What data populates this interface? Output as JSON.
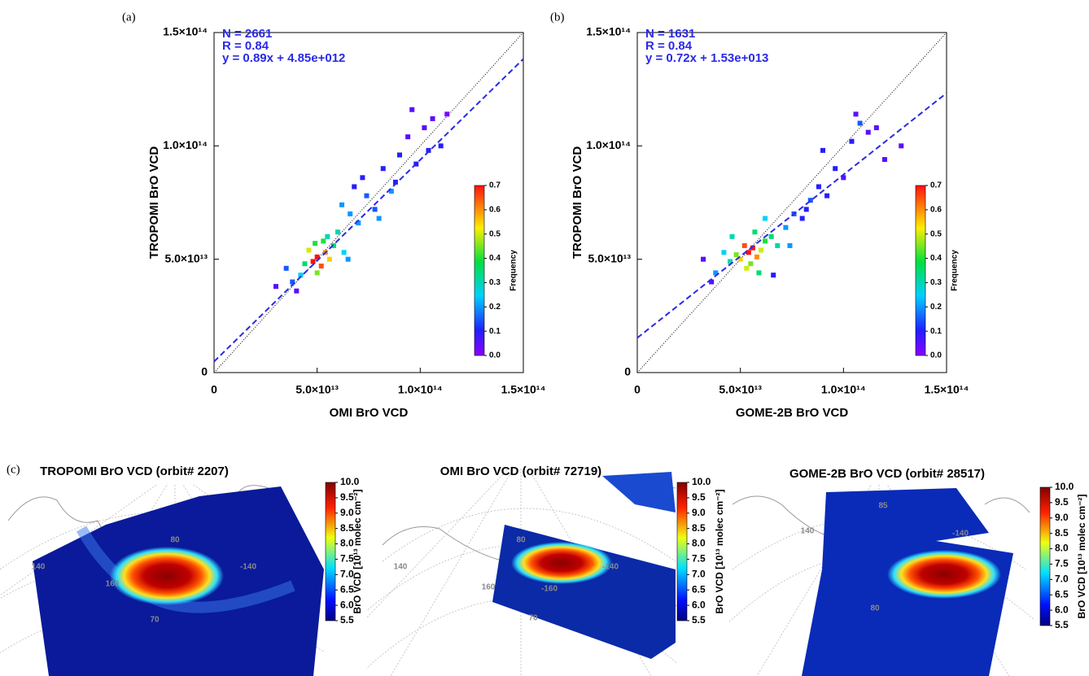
{
  "chart_data": [
    {
      "type": "scatter",
      "panel_label": "(a)",
      "x_label": "OMI BrO VCD",
      "y_label": "TROPOMI BrO VCD",
      "annotations": [
        "N = 2661",
        "R = 0.84",
        "y = 0.89x + 4.85e+012"
      ],
      "fit": {
        "slope": 0.89,
        "intercept": 4850000000000.0
      },
      "fit_color": "#2a2ae6",
      "xlim": [
        0,
        150000000000000.0
      ],
      "ylim": [
        0,
        150000000000000.0
      ],
      "xticks": [
        0,
        {
          "value": 50000000000000.0,
          "label": "5.0×10¹³"
        },
        {
          "value": 100000000000000.0,
          "label": "1.0×10¹⁴"
        },
        {
          "value": 150000000000000.0,
          "label": "1.5×10¹⁴"
        }
      ],
      "yticks": [
        0,
        {
          "value": 50000000000000.0,
          "label": "5.0×10¹³"
        },
        {
          "value": 100000000000000.0,
          "label": "1.0×10¹⁴"
        },
        {
          "value": 150000000000000.0,
          "label": "1.5×10¹⁴"
        }
      ],
      "colorbar_label": "Frequency",
      "colorbar_lim": [
        0,
        0.7
      ],
      "colorbar_ticks": [
        {
          "value": 0,
          "label": "0.0"
        },
        0.1,
        0.2,
        0.3,
        0.4,
        0.5,
        0.6,
        0.7
      ],
      "x": [
        48000000000000.0,
        50000000000000.0,
        52000000000000.0,
        54000000000000.0,
        46000000000000.0,
        56000000000000.0,
        50000000000000.0,
        53000000000000.0,
        44000000000000.0,
        58000000000000.0,
        60000000000000.0,
        42000000000000.0,
        63000000000000.0,
        55000000000000.0,
        49000000000000.0,
        38000000000000.0,
        35000000000000.0,
        66000000000000.0,
        70000000000000.0,
        74000000000000.0,
        68000000000000.0,
        78000000000000.0,
        82000000000000.0,
        86000000000000.0,
        90000000000000.0,
        94000000000000.0,
        98000000000000.0,
        102000000000000.0,
        106000000000000.0,
        110000000000000.0,
        80000000000000.0,
        72000000000000.0,
        62000000000000.0,
        96000000000000.0,
        104000000000000.0,
        30000000000000.0,
        40000000000000.0,
        65000000000000.0,
        88000000000000.0,
        113000000000000.0
      ],
      "values": [
        49000000000000.0,
        51000000000000.0,
        47000000000000.0,
        53000000000000.0,
        54000000000000.0,
        50000000000000.0,
        44000000000000.0,
        58000000000000.0,
        48000000000000.0,
        56000000000000.0,
        62000000000000.0,
        43000000000000.0,
        53000000000000.0,
        60000000000000.0,
        57000000000000.0,
        40000000000000.0,
        46000000000000.0,
        70000000000000.0,
        66000000000000.0,
        78000000000000.0,
        82000000000000.0,
        72000000000000.0,
        90000000000000.0,
        80000000000000.0,
        96000000000000.0,
        104000000000000.0,
        92000000000000.0,
        108000000000000.0,
        112000000000000.0,
        100000000000000.0,
        68000000000000.0,
        86000000000000.0,
        74000000000000.0,
        116000000000000.0,
        98000000000000.0,
        38000000000000.0,
        36000000000000.0,
        50000000000000.0,
        84000000000000.0,
        114000000000000.0
      ],
      "frequency": [
        0.7,
        0.7,
        0.65,
        0.6,
        0.5,
        0.55,
        0.45,
        0.4,
        0.35,
        0.35,
        0.3,
        0.25,
        0.25,
        0.3,
        0.4,
        0.15,
        0.15,
        0.2,
        0.2,
        0.15,
        0.1,
        0.15,
        0.1,
        0.2,
        0.1,
        0.05,
        0.1,
        0.05,
        0.05,
        0.1,
        0.2,
        0.1,
        0.2,
        0.05,
        0.1,
        0.05,
        0.05,
        0.2,
        0.1,
        0.02
      ]
    },
    {
      "type": "scatter",
      "panel_label": "(b)",
      "x_label": "GOME-2B BrO VCD",
      "y_label": "TROPOMI BrO VCD",
      "annotations": [
        "N = 1631",
        "R = 0.84",
        "y = 0.72x + 1.53e+013"
      ],
      "fit": {
        "slope": 0.72,
        "intercept": 15300000000000.0
      },
      "fit_color": "#2a2ae6",
      "xlim": [
        0,
        150000000000000.0
      ],
      "ylim": [
        0,
        150000000000000.0
      ],
      "xticks": [
        0,
        {
          "value": 50000000000000.0,
          "label": "5.0×10¹³"
        },
        {
          "value": 100000000000000.0,
          "label": "1.0×10¹⁴"
        },
        {
          "value": 150000000000000.0,
          "label": "1.5×10¹⁴"
        }
      ],
      "yticks": [
        0,
        {
          "value": 50000000000000.0,
          "label": "5.0×10¹³"
        },
        {
          "value": 100000000000000.0,
          "label": "1.0×10¹⁴"
        },
        {
          "value": 150000000000000.0,
          "label": "1.5×10¹⁴"
        }
      ],
      "colorbar_label": "Frequency",
      "colorbar_lim": [
        0,
        0.7
      ],
      "colorbar_ticks": [
        {
          "value": 0,
          "label": "0.0"
        },
        0.1,
        0.2,
        0.3,
        0.4,
        0.5,
        0.6,
        0.7
      ],
      "x": [
        54000000000000.0,
        56000000000000.0,
        58000000000000.0,
        52000000000000.0,
        50000000000000.0,
        60000000000000.0,
        55000000000000.0,
        48000000000000.0,
        62000000000000.0,
        53000000000000.0,
        45000000000000.0,
        65000000000000.0,
        42000000000000.0,
        68000000000000.0,
        57000000000000.0,
        38000000000000.0,
        72000000000000.0,
        76000000000000.0,
        80000000000000.0,
        84000000000000.0,
        88000000000000.0,
        92000000000000.0,
        96000000000000.0,
        100000000000000.0,
        104000000000000.0,
        108000000000000.0,
        112000000000000.0,
        120000000000000.0,
        128000000000000.0,
        32000000000000.0,
        36000000000000.0,
        66000000000000.0,
        74000000000000.0,
        90000000000000.0,
        106000000000000.0,
        46000000000000.0,
        62000000000000.0,
        59000000000000.0,
        116000000000000.0,
        82000000000000.0
      ],
      "values": [
        53000000000000.0,
        55000000000000.0,
        51000000000000.0,
        56000000000000.0,
        50000000000000.0,
        54000000000000.0,
        48000000000000.0,
        52000000000000.0,
        58000000000000.0,
        46000000000000.0,
        49000000000000.0,
        60000000000000.0,
        53000000000000.0,
        56000000000000.0,
        62000000000000.0,
        44000000000000.0,
        64000000000000.0,
        70000000000000.0,
        68000000000000.0,
        76000000000000.0,
        82000000000000.0,
        78000000000000.0,
        90000000000000.0,
        86000000000000.0,
        102000000000000.0,
        110000000000000.0,
        106000000000000.0,
        94000000000000.0,
        100000000000000.0,
        50000000000000.0,
        40000000000000.0,
        43000000000000.0,
        56000000000000.0,
        98000000000000.0,
        114000000000000.0,
        60000000000000.0,
        68000000000000.0,
        44000000000000.0,
        108000000000000.0,
        72000000000000.0
      ],
      "frequency": [
        0.7,
        0.7,
        0.6,
        0.65,
        0.55,
        0.5,
        0.45,
        0.45,
        0.4,
        0.5,
        0.3,
        0.35,
        0.25,
        0.3,
        0.35,
        0.2,
        0.2,
        0.15,
        0.1,
        0.15,
        0.1,
        0.1,
        0.1,
        0.05,
        0.1,
        0.15,
        0.05,
        0.05,
        0.05,
        0.05,
        0.05,
        0.1,
        0.2,
        0.1,
        0.05,
        0.3,
        0.25,
        0.35,
        0.05,
        0.1
      ]
    },
    {
      "type": "map",
      "panel_label": "(c)",
      "title": "TROPOMI BrO VCD (orbit# 2207)",
      "colorbar_label": "BrO VCD [10¹³ molec cm⁻²]",
      "colorbar_lim": [
        5.5,
        10
      ],
      "colorbar_ticks": [
        {
          "value": 10,
          "label": "10.0"
        },
        9.5,
        {
          "value": 9,
          "label": "9.0"
        },
        8.5,
        {
          "value": 8,
          "label": "8.0"
        },
        7.5,
        {
          "value": 7,
          "label": "7.0"
        },
        6.5,
        {
          "value": 6,
          "label": "6.0"
        },
        5.5
      ],
      "grid_labels": [
        "80",
        "140",
        "160",
        "-140",
        "70"
      ]
    },
    {
      "type": "map",
      "title": "OMI BrO VCD (orbit# 72719)",
      "colorbar_label": "BrO VCD [10¹³ molec cm⁻²]",
      "colorbar_lim": [
        5.5,
        10
      ],
      "colorbar_ticks": [
        {
          "value": 10,
          "label": "10.0"
        },
        9.5,
        {
          "value": 9,
          "label": "9.0"
        },
        8.5,
        {
          "value": 8,
          "label": "8.0"
        },
        7.5,
        {
          "value": 7,
          "label": "7.0"
        },
        6.5,
        {
          "value": 6,
          "label": "6.0"
        },
        5.5
      ],
      "grid_labels": [
        "80",
        "140",
        "160",
        "-160",
        "-140",
        "70"
      ]
    },
    {
      "type": "map",
      "title": "GOME-2B BrO VCD (orbit# 28517)",
      "colorbar_label": "BrO VCD [10¹³ molec cm⁻²]",
      "colorbar_lim": [
        5.5,
        10
      ],
      "colorbar_ticks": [
        {
          "value": 10,
          "label": "10.0"
        },
        9.5,
        {
          "value": 9,
          "label": "9.0"
        },
        8.5,
        {
          "value": 8,
          "label": "8.0"
        },
        7.5,
        {
          "value": 7,
          "label": "7.0"
        },
        6.5,
        {
          "value": 6,
          "label": "6.0"
        },
        5.5
      ],
      "grid_labels": [
        "85",
        "140",
        "-140",
        "80"
      ]
    }
  ]
}
